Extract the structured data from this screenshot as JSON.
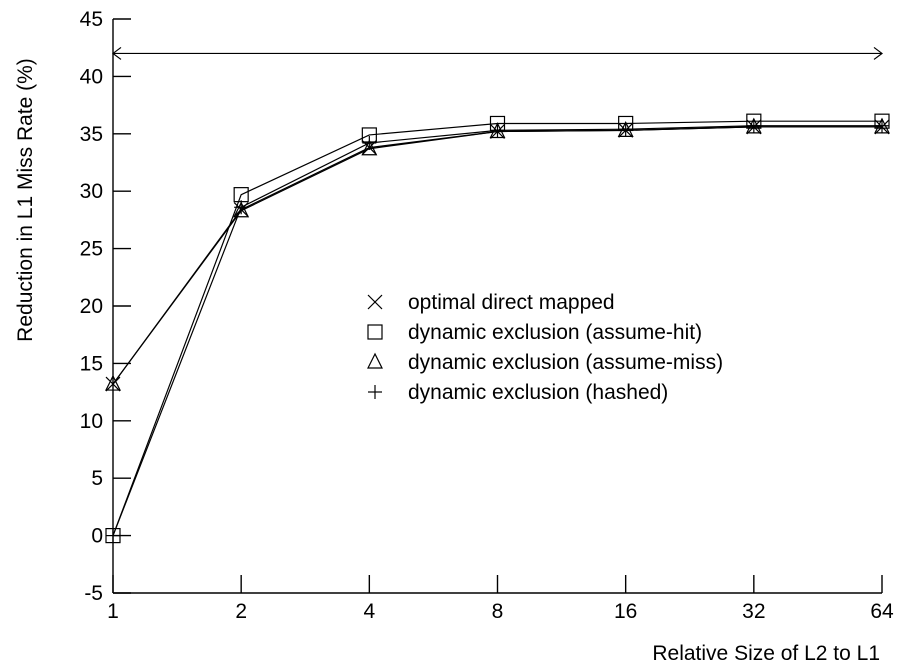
{
  "chart_data": {
    "type": "line",
    "title": "",
    "xlabel": "Relative Size of L2 to L1",
    "ylabel": "Reduction in L1 Miss Rate (%)",
    "categories": [
      "1",
      "2",
      "4",
      "8",
      "16",
      "32",
      "64"
    ],
    "y_ticks": [
      "-5",
      "0",
      "5",
      "10",
      "15",
      "20",
      "25",
      "30",
      "35",
      "40",
      "45"
    ],
    "ylim": [
      -5,
      45
    ],
    "grid": false,
    "legend_position": "center",
    "reference_arrow": {
      "y": 42,
      "from": "1",
      "to": "64",
      "style": "double-headed"
    },
    "series": [
      {
        "name": "optimal direct mapped",
        "marker": "x-icon",
        "values": [
          13.2,
          28.4,
          33.8,
          35.2,
          35.3,
          35.6,
          35.6
        ]
      },
      {
        "name": "dynamic exclusion (assume-hit)",
        "marker": "square-icon",
        "values": [
          0.0,
          29.7,
          34.9,
          35.9,
          35.9,
          36.1,
          36.1
        ]
      },
      {
        "name": "dynamic exclusion (assume-miss)",
        "marker": "triangle-icon",
        "values": [
          13.2,
          28.3,
          33.7,
          35.2,
          35.3,
          35.6,
          35.6
        ]
      },
      {
        "name": "dynamic exclusion (hashed)",
        "marker": "plus-icon",
        "values": [
          0.0,
          28.6,
          34.2,
          35.3,
          35.4,
          35.7,
          35.7
        ]
      }
    ]
  }
}
